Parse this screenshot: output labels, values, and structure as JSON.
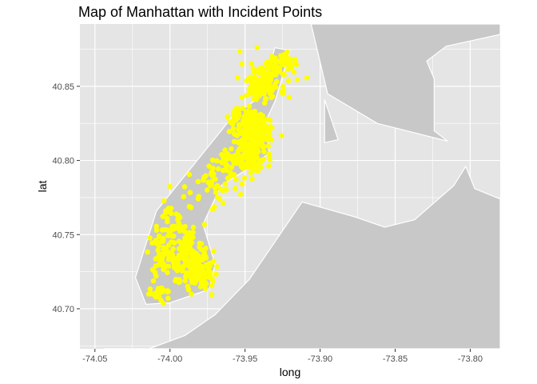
{
  "chart_data": {
    "type": "scatter",
    "title": "Map of Manhattan with Incident Points",
    "xlabel": "long",
    "ylabel": "lat",
    "xlim": [
      -74.06,
      -73.78
    ],
    "ylim": [
      40.673,
      40.892
    ],
    "x_ticks": [
      -74.05,
      -74.0,
      -73.95,
      -73.9,
      -73.85,
      -73.8
    ],
    "x_tick_labels": [
      "-74.05",
      "-74.00",
      "-73.95",
      "-73.90",
      "-73.85",
      "-73.80"
    ],
    "y_ticks": [
      40.7,
      40.75,
      40.8,
      40.85
    ],
    "y_tick_labels": [
      "40.70",
      "40.75",
      "40.80",
      "40.85"
    ],
    "grid": true,
    "legend": "none",
    "colors": {
      "panel_background": "#e5e5e5",
      "grid_line": "#ffffff",
      "land_fill": "#c8c8c8",
      "land_border": "#ffffff",
      "points": "#ffff00"
    },
    "map_regions": [
      {
        "name": "manhattan",
        "polygon": [
          [
            -74.023,
            40.721
          ],
          [
            -74.009,
            40.766
          ],
          [
            -73.958,
            40.83
          ],
          [
            -73.941,
            40.842
          ],
          [
            -73.93,
            40.876
          ],
          [
            -73.92,
            40.874
          ],
          [
            -73.93,
            40.84
          ],
          [
            -73.936,
            40.827
          ],
          [
            -73.934,
            40.805
          ],
          [
            -73.944,
            40.797
          ],
          [
            -73.966,
            40.783
          ],
          [
            -73.978,
            40.757
          ],
          [
            -73.97,
            40.73
          ],
          [
            -73.974,
            40.713
          ],
          [
            -74.0,
            40.704
          ],
          [
            -74.016,
            40.703
          ]
        ]
      },
      {
        "name": "brooklyn-queens",
        "polygon": [
          [
            -74.044,
            40.673
          ],
          [
            -74.014,
            40.673
          ],
          [
            -73.99,
            40.682
          ],
          [
            -73.97,
            40.696
          ],
          [
            -73.947,
            40.72
          ],
          [
            -73.912,
            40.772
          ],
          [
            -73.877,
            40.762
          ],
          [
            -73.857,
            40.755
          ],
          [
            -73.837,
            40.76
          ],
          [
            -73.811,
            40.783
          ],
          [
            -73.803,
            40.796
          ],
          [
            -73.797,
            40.781
          ],
          [
            -73.78,
            40.774
          ],
          [
            -73.78,
            40.673
          ]
        ]
      },
      {
        "name": "bronx",
        "polygon": [
          [
            -73.906,
            40.892
          ],
          [
            -73.78,
            40.892
          ],
          [
            -73.78,
            40.885
          ],
          [
            -73.816,
            40.877
          ],
          [
            -73.829,
            40.867
          ],
          [
            -73.824,
            40.855
          ],
          [
            -73.824,
            40.82
          ],
          [
            -73.815,
            40.813
          ],
          [
            -73.862,
            40.825
          ],
          [
            -73.895,
            40.845
          ]
        ]
      },
      {
        "name": "randalls-island",
        "polygon": [
          [
            -73.897,
            40.841
          ],
          [
            -73.888,
            40.814
          ],
          [
            -73.897,
            40.812
          ]
        ]
      }
    ],
    "clusters": [
      {
        "cx": -73.938,
        "cy": 40.853,
        "sx": 0.0075,
        "sy": 0.007,
        "n": 150
      },
      {
        "cx": -73.923,
        "cy": 40.865,
        "sx": 0.0045,
        "sy": 0.0045,
        "n": 35
      },
      {
        "cx": -73.944,
        "cy": 40.818,
        "sx": 0.0058,
        "sy": 0.0075,
        "n": 260
      },
      {
        "cx": -73.952,
        "cy": 40.8,
        "sx": 0.008,
        "sy": 0.005,
        "n": 90
      },
      {
        "cx": -73.956,
        "cy": 40.83,
        "sx": 0.0035,
        "sy": 0.004,
        "n": 25
      },
      {
        "cx": -73.968,
        "cy": 40.785,
        "sx": 0.009,
        "sy": 0.009,
        "n": 45
      },
      {
        "cx": -73.994,
        "cy": 40.757,
        "sx": 0.0065,
        "sy": 0.009,
        "n": 50
      },
      {
        "cx": -73.992,
        "cy": 40.735,
        "sx": 0.008,
        "sy": 0.008,
        "n": 110
      },
      {
        "cx": -73.98,
        "cy": 40.723,
        "sx": 0.005,
        "sy": 0.005,
        "n": 90
      },
      {
        "cx": -74.006,
        "cy": 40.74,
        "sx": 0.004,
        "sy": 0.009,
        "n": 40
      },
      {
        "cx": -74.008,
        "cy": 40.71,
        "sx": 0.005,
        "sy": 0.003,
        "n": 20
      }
    ]
  }
}
